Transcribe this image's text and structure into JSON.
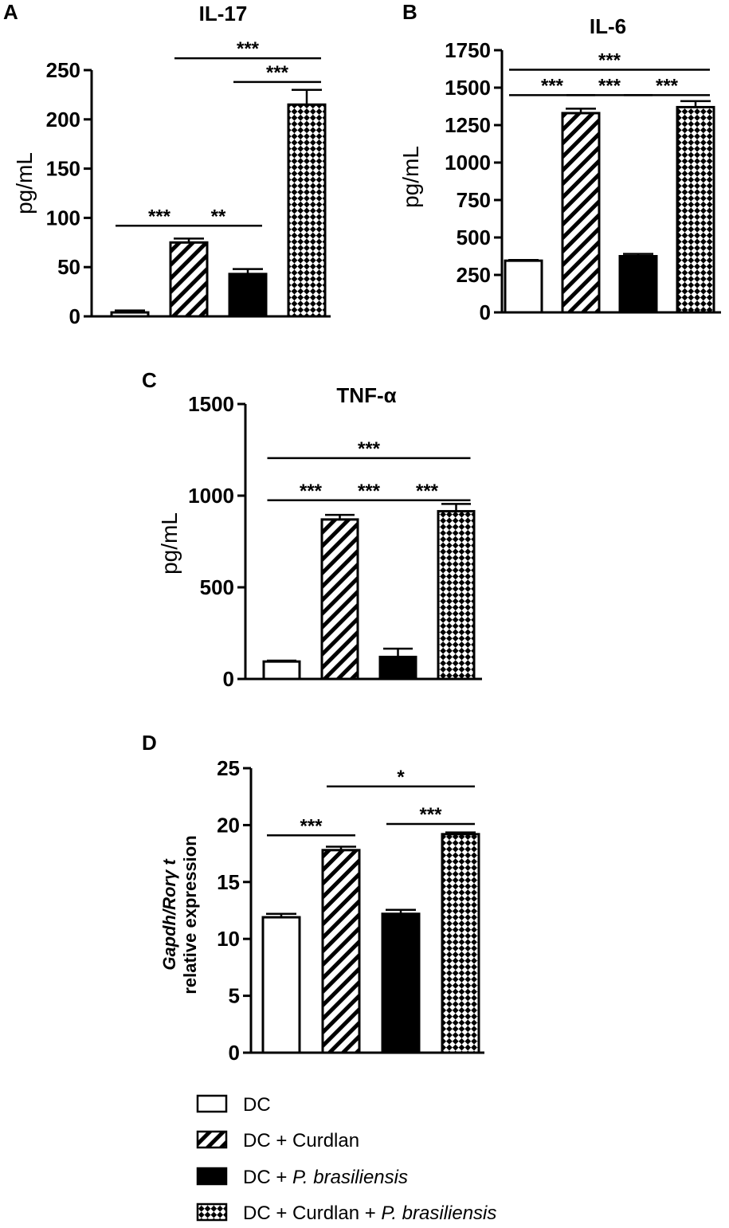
{
  "legend": [
    {
      "pattern": "open",
      "prefix": "DC",
      "italic": "",
      "suffix": ""
    },
    {
      "pattern": "stripe",
      "prefix": "DC + Curdlan",
      "italic": "",
      "suffix": ""
    },
    {
      "pattern": "solid",
      "prefix": "DC + ",
      "italic": "P. brasiliensis",
      "suffix": ""
    },
    {
      "pattern": "check",
      "prefix": "DC + Curdlan + ",
      "italic": "P. brasiliensis",
      "suffix": ""
    }
  ],
  "chart_data": [
    {
      "panel": "A",
      "type": "bar",
      "title": "IL-17",
      "ylabel": "pg/mL",
      "ylabel_italic": "",
      "ylim": [
        0,
        250
      ],
      "yticks": [
        0,
        50,
        100,
        150,
        200,
        250
      ],
      "categories": [
        "DC",
        "DC + Curdlan",
        "DC + P. brasiliensis",
        "DC + Curdlan + P. brasiliensis"
      ],
      "patterns": [
        "open",
        "stripe",
        "solid",
        "check"
      ],
      "values": [
        4,
        75,
        43,
        215
      ],
      "errors": [
        2,
        4,
        5,
        15
      ],
      "significance": [
        {
          "from": 0,
          "to": 1,
          "label": "***",
          "y": 92
        },
        {
          "from": 1,
          "to": 2,
          "label": "**",
          "y": 92
        },
        {
          "from": 2,
          "to": 3,
          "label": "***",
          "y": 238
        },
        {
          "from": 1,
          "to": 3,
          "label": "***",
          "y": 262
        }
      ]
    },
    {
      "panel": "B",
      "type": "bar",
      "title": "IL-6",
      "ylabel": "pg/mL",
      "ylabel_italic": "",
      "ylim": [
        0,
        1750
      ],
      "yticks": [
        0,
        250,
        500,
        750,
        1000,
        1250,
        1500,
        1750
      ],
      "categories": [
        "DC",
        "DC + Curdlan",
        "DC + P. brasiliensis",
        "DC + Curdlan + P. brasiliensis"
      ],
      "patterns": [
        "open",
        "stripe",
        "solid",
        "check"
      ],
      "values": [
        345,
        1330,
        375,
        1370
      ],
      "errors": [
        5,
        30,
        15,
        40
      ],
      "significance": [
        {
          "from": 0,
          "to": 1,
          "label": "***",
          "y": 1450
        },
        {
          "from": 1,
          "to": 2,
          "label": "***",
          "y": 1450
        },
        {
          "from": 2,
          "to": 3,
          "label": "***",
          "y": 1450
        },
        {
          "from": 0,
          "to": 3,
          "label": "***",
          "y": 1620
        }
      ]
    },
    {
      "panel": "C",
      "type": "bar",
      "title": "TNF-α",
      "ylabel": "pg/mL",
      "ylabel_italic": "",
      "ylim": [
        0,
        1500
      ],
      "yticks": [
        0,
        500,
        1000,
        1500
      ],
      "categories": [
        "DC",
        "DC + Curdlan",
        "DC + P. brasiliensis",
        "DC + Curdlan + P. brasiliensis"
      ],
      "patterns": [
        "open",
        "stripe",
        "solid",
        "check"
      ],
      "values": [
        95,
        870,
        120,
        915
      ],
      "errors": [
        5,
        25,
        45,
        40
      ],
      "significance": [
        {
          "from": 0,
          "to": 1,
          "label": "***",
          "y": 975
        },
        {
          "from": 1,
          "to": 2,
          "label": "***",
          "y": 975
        },
        {
          "from": 2,
          "to": 3,
          "label": "***",
          "y": 975
        },
        {
          "from": 0,
          "to": 3,
          "label": "***",
          "y": 1205
        }
      ]
    },
    {
      "panel": "D",
      "type": "bar",
      "title": "",
      "ylabel": "relative expression",
      "ylabel_italic": "Gapdh/Rorγ t",
      "ylim": [
        0,
        25
      ],
      "yticks": [
        0,
        5,
        10,
        15,
        20,
        25
      ],
      "categories": [
        "DC",
        "DC + Curdlan",
        "DC + P. brasiliensis",
        "DC + Curdlan + P. brasiliensis"
      ],
      "patterns": [
        "open",
        "stripe",
        "solid",
        "check"
      ],
      "values": [
        11.9,
        17.8,
        12.2,
        19.2
      ],
      "errors": [
        0.3,
        0.3,
        0.35,
        0.15
      ],
      "significance": [
        {
          "from": 0,
          "to": 1,
          "label": "***",
          "y": 19.1
        },
        {
          "from": 2,
          "to": 3,
          "label": "***",
          "y": 20.1
        },
        {
          "from": 1,
          "to": 3,
          "label": "*",
          "y": 23.4
        }
      ]
    }
  ]
}
